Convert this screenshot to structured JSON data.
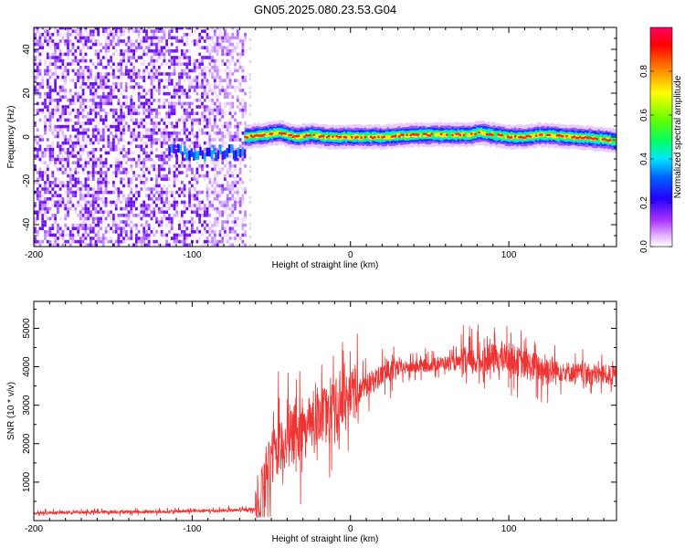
{
  "title": "GN05.2025.080.23.53.G04",
  "chart_data": [
    {
      "type": "heatmap",
      "xlabel": "Height of straight line (km)",
      "ylabel": "Frequency (Hz)",
      "xlim": [
        -200,
        168
      ],
      "ylim": [
        -50,
        50
      ],
      "xticks": [
        -200,
        -100,
        0,
        100
      ],
      "xtick_labels": [
        "-200",
        "-100",
        "0",
        "100"
      ],
      "yticks": [
        -40,
        -20,
        0,
        20,
        40
      ],
      "ytick_labels": [
        "-40",
        "-20",
        "0",
        "20",
        "40"
      ],
      "colorbar": {
        "label": "Normalized spectral amplitude",
        "range": [
          0,
          1
        ],
        "ticks": [
          0.0,
          0.2,
          0.4,
          0.6,
          0.8
        ],
        "tick_labels": [
          "0.0",
          "0.2",
          "0.4",
          "0.6",
          "0.8"
        ],
        "colormap": [
          "#ffffff",
          "#cc66ff",
          "#5500ff",
          "#0000ff",
          "#00d4ff",
          "#00ff55",
          "#55ff00",
          "#ffff00",
          "#ff8800",
          "#ff0000",
          "#ff0066"
        ]
      },
      "noise_region_x": [
        -200,
        -67
      ],
      "signal_track": {
        "x": [
          -67,
          -55,
          -45,
          -35,
          -25,
          -15,
          0,
          20,
          40,
          60,
          75,
          80,
          90,
          100,
          110,
          120,
          140,
          160,
          168
        ],
        "freq": [
          0,
          1,
          2,
          0,
          1,
          0,
          0,
          0,
          1,
          1,
          1,
          2,
          1,
          0,
          0,
          1,
          0,
          -1,
          -2
        ]
      },
      "weak_band": {
        "x": [
          -115,
          -67
        ],
        "freq": -7
      },
      "grid": false
    },
    {
      "type": "line",
      "xlabel": "Height of straight line (km)",
      "ylabel": "SNR (10 * v/v)",
      "xlim": [
        -200,
        168
      ],
      "ylim": [
        0,
        5700
      ],
      "xticks": [
        -200,
        -100,
        0,
        100
      ],
      "xtick_labels": [
        "-200",
        "-100",
        "0",
        "100"
      ],
      "yticks": [
        1000,
        2000,
        3000,
        4000,
        5000
      ],
      "ytick_labels": [
        "1000",
        "2000",
        "3000",
        "4000",
        "5000"
      ],
      "series": [
        {
          "color": "#ee3333",
          "x": [
            -200,
            -180,
            -160,
            -140,
            -120,
            -100,
            -80,
            -70,
            -60,
            -55,
            -50,
            -45,
            -40,
            -35,
            -30,
            -25,
            -20,
            -15,
            -10,
            -5,
            0,
            5,
            10,
            20,
            30,
            40,
            50,
            60,
            70,
            80,
            90,
            100,
            110,
            120,
            130,
            140,
            150,
            160,
            168
          ],
          "y": [
            200,
            210,
            220,
            230,
            230,
            250,
            260,
            270,
            300,
            700,
            1600,
            1800,
            2200,
            2300,
            2400,
            2500,
            2700,
            2900,
            2900,
            3200,
            3300,
            3400,
            3500,
            3800,
            3950,
            4000,
            4050,
            4100,
            4100,
            4150,
            4200,
            4250,
            4050,
            3950,
            3900,
            3850,
            3800,
            3800,
            3750
          ]
        }
      ],
      "grid": false
    }
  ]
}
